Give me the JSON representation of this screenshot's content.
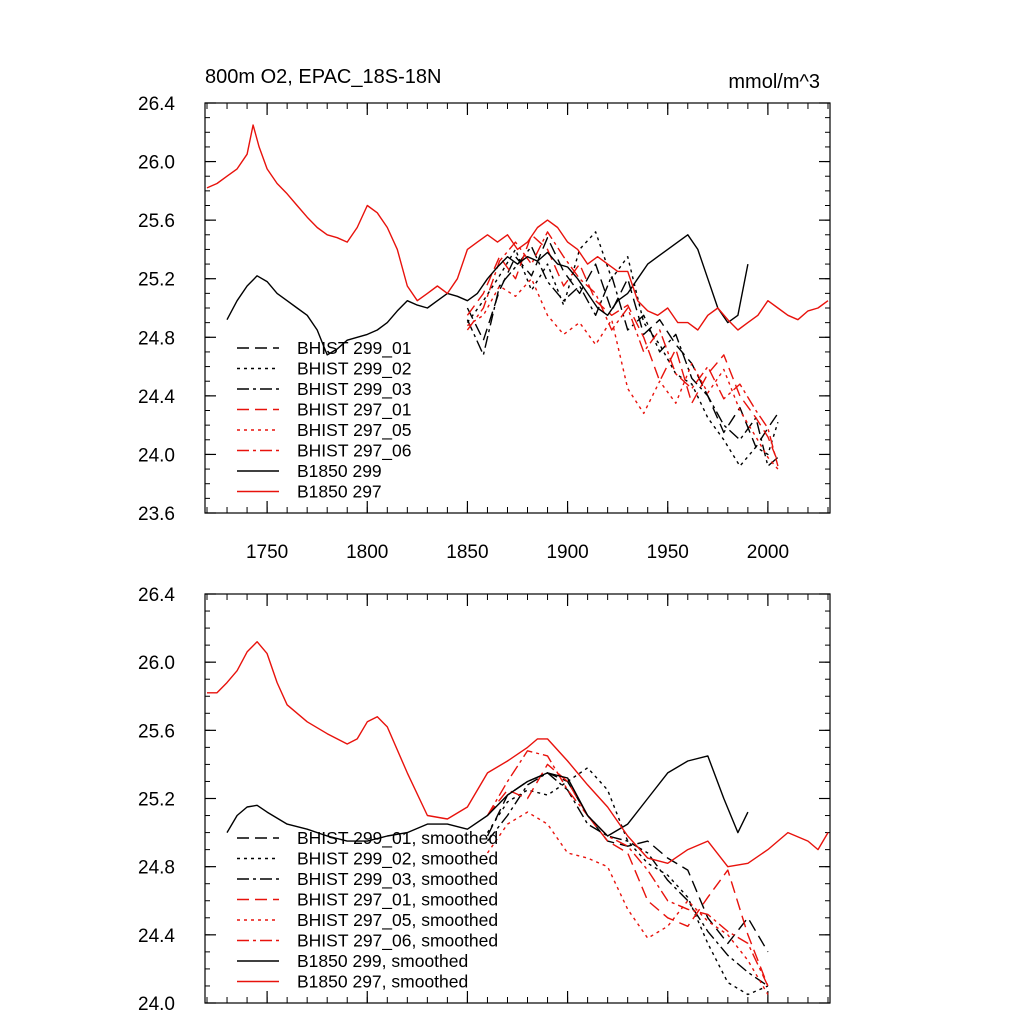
{
  "chart_data": [
    {
      "type": "line",
      "title": "800m O2, EPAC_18S-18N",
      "units_label": "mmol/m^3",
      "xlabel": "",
      "ylabel": "",
      "xlim": [
        1719,
        2031
      ],
      "ylim": [
        23.6,
        26.4
      ],
      "x_ticks": [
        1750,
        1800,
        1850,
        1900,
        1950,
        2000
      ],
      "y_ticks": [
        23.6,
        24.0,
        24.4,
        24.8,
        25.2,
        25.6,
        26.0,
        26.4
      ],
      "show_x_tick_labels": true,
      "legend_position": "bottom-left",
      "series": [
        {
          "name": "BHIST 299_01",
          "color": "#000000",
          "dash": "dash",
          "x": [
            1850,
            1858,
            1866,
            1874,
            1882,
            1890,
            1898,
            1906,
            1914,
            1922,
            1930,
            1938,
            1946,
            1954,
            1962,
            1970,
            1978,
            1986,
            1994,
            2000,
            2005
          ],
          "y": [
            25.0,
            24.78,
            25.12,
            25.35,
            25.22,
            25.48,
            25.25,
            25.1,
            25.3,
            24.98,
            25.2,
            24.82,
            24.92,
            24.75,
            24.62,
            24.4,
            24.15,
            24.32,
            24.05,
            24.18,
            24.28
          ]
        },
        {
          "name": "BHIST 299_02",
          "color": "#000000",
          "dash": "dot",
          "x": [
            1850,
            1858,
            1866,
            1874,
            1882,
            1890,
            1898,
            1906,
            1914,
            1922,
            1930,
            1938,
            1946,
            1954,
            1962,
            1970,
            1978,
            1986,
            1994,
            2000,
            2005
          ],
          "y": [
            24.9,
            25.05,
            25.22,
            25.4,
            25.12,
            25.3,
            25.02,
            25.4,
            25.52,
            25.2,
            25.35,
            24.9,
            24.75,
            24.55,
            24.48,
            24.25,
            24.1,
            23.92,
            24.05,
            24.0,
            24.22
          ]
        },
        {
          "name": "BHIST 299_03",
          "color": "#000000",
          "dash": "dashdot",
          "x": [
            1850,
            1858,
            1866,
            1874,
            1882,
            1890,
            1898,
            1906,
            1914,
            1922,
            1930,
            1938,
            1946,
            1954,
            1962,
            1970,
            1978,
            1986,
            1994,
            2000,
            2005
          ],
          "y": [
            24.92,
            24.68,
            25.15,
            25.28,
            25.42,
            25.18,
            25.05,
            25.15,
            24.95,
            25.22,
            24.85,
            24.95,
            24.7,
            24.82,
            24.52,
            24.4,
            24.2,
            24.1,
            24.25,
            23.92,
            23.98
          ]
        },
        {
          "name": "BHIST 297_01",
          "color": "#e8120c",
          "dash": "dash",
          "x": [
            1850,
            1858,
            1866,
            1874,
            1882,
            1890,
            1898,
            1906,
            1914,
            1922,
            1930,
            1938,
            1946,
            1954,
            1962,
            1970,
            1978,
            1986,
            1994,
            2000,
            2005
          ],
          "y": [
            24.95,
            25.1,
            25.35,
            25.2,
            25.5,
            25.4,
            25.15,
            25.3,
            25.05,
            24.95,
            25.02,
            24.8,
            24.5,
            24.72,
            24.35,
            24.55,
            24.68,
            24.4,
            24.25,
            24.12,
            23.95
          ]
        },
        {
          "name": "BHIST 297_05",
          "color": "#e8120c",
          "dash": "dot",
          "x": [
            1850,
            1858,
            1866,
            1874,
            1882,
            1890,
            1898,
            1906,
            1914,
            1922,
            1930,
            1938,
            1946,
            1954,
            1962,
            1970,
            1978,
            1986,
            1994,
            2000,
            2005
          ],
          "y": [
            24.88,
            24.95,
            25.15,
            25.08,
            25.2,
            24.95,
            24.82,
            24.9,
            24.75,
            24.92,
            24.45,
            24.28,
            24.5,
            24.35,
            24.62,
            24.42,
            24.58,
            24.3,
            24.12,
            23.98,
            23.9
          ]
        },
        {
          "name": "BHIST 297_06",
          "color": "#e8120c",
          "dash": "dashdot",
          "x": [
            1850,
            1858,
            1866,
            1874,
            1882,
            1890,
            1898,
            1906,
            1914,
            1922,
            1930,
            1938,
            1946,
            1954,
            1962,
            1970,
            1978,
            1986,
            1994,
            2000,
            2005
          ],
          "y": [
            24.85,
            25.0,
            25.32,
            25.45,
            25.3,
            25.52,
            25.35,
            25.2,
            25.1,
            24.85,
            25.0,
            24.7,
            24.85,
            24.55,
            24.45,
            24.6,
            24.38,
            24.48,
            24.3,
            24.18,
            23.92
          ]
        },
        {
          "name": "B1850 299",
          "color": "#000000",
          "dash": "solid",
          "x": [
            1730,
            1735,
            1740,
            1745,
            1750,
            1755,
            1760,
            1765,
            1770,
            1775,
            1780,
            1785,
            1790,
            1795,
            1800,
            1805,
            1810,
            1815,
            1820,
            1825,
            1830,
            1835,
            1840,
            1845,
            1850,
            1855,
            1860,
            1865,
            1870,
            1875,
            1880,
            1885,
            1890,
            1895,
            1900,
            1905,
            1910,
            1915,
            1920,
            1925,
            1930,
            1935,
            1940,
            1945,
            1950,
            1955,
            1960,
            1965,
            1970,
            1975,
            1980,
            1985,
            1990
          ],
          "y": [
            24.92,
            25.05,
            25.15,
            25.22,
            25.18,
            25.1,
            25.05,
            25.0,
            24.95,
            24.85,
            24.68,
            24.72,
            24.78,
            24.8,
            24.82,
            24.85,
            24.9,
            24.98,
            25.05,
            25.02,
            25.0,
            25.05,
            25.1,
            25.08,
            25.05,
            25.1,
            25.2,
            25.28,
            25.35,
            25.3,
            25.35,
            25.32,
            25.38,
            25.3,
            25.28,
            25.2,
            25.1,
            25.0,
            24.95,
            25.05,
            25.1,
            25.2,
            25.3,
            25.35,
            25.4,
            25.45,
            25.5,
            25.4,
            25.2,
            25.0,
            24.9,
            24.95,
            25.3
          ]
        },
        {
          "name": "B1850 297",
          "color": "#e8120c",
          "dash": "solid",
          "x": [
            1720,
            1725,
            1730,
            1735,
            1740,
            1743,
            1746,
            1750,
            1755,
            1760,
            1765,
            1770,
            1775,
            1780,
            1785,
            1790,
            1795,
            1800,
            1805,
            1810,
            1815,
            1820,
            1825,
            1830,
            1835,
            1840,
            1845,
            1850,
            1855,
            1860,
            1865,
            1870,
            1875,
            1880,
            1885,
            1890,
            1895,
            1900,
            1905,
            1910,
            1915,
            1920,
            1925,
            1930,
            1935,
            1940,
            1945,
            1950,
            1955,
            1960,
            1965,
            1970,
            1975,
            1980,
            1985,
            1990,
            1995,
            2000,
            2005,
            2010,
            2015,
            2020,
            2025,
            2030
          ],
          "y": [
            25.82,
            25.85,
            25.9,
            25.95,
            26.05,
            26.25,
            26.1,
            25.95,
            25.85,
            25.78,
            25.7,
            25.62,
            25.55,
            25.5,
            25.48,
            25.45,
            25.55,
            25.7,
            25.65,
            25.55,
            25.4,
            25.15,
            25.05,
            25.1,
            25.15,
            25.1,
            25.2,
            25.4,
            25.45,
            25.5,
            25.45,
            25.5,
            25.4,
            25.45,
            25.55,
            25.6,
            25.55,
            25.45,
            25.4,
            25.3,
            25.35,
            25.3,
            25.25,
            25.25,
            25.05,
            24.98,
            24.95,
            25.0,
            24.9,
            24.9,
            24.85,
            24.95,
            25.0,
            24.92,
            24.85,
            24.9,
            24.95,
            25.05,
            25.0,
            24.95,
            24.92,
            24.98,
            25.0,
            25.05
          ]
        }
      ]
    },
    {
      "type": "line",
      "title": "",
      "units_label": "",
      "xlabel": "",
      "ylabel": "",
      "xlim": [
        1719,
        2031
      ],
      "ylim": [
        24.0,
        26.4
      ],
      "x_ticks": [
        1750,
        1800,
        1850,
        1900,
        1950,
        2000
      ],
      "y_ticks": [
        24.0,
        24.4,
        24.8,
        25.2,
        25.6,
        26.0,
        26.4
      ],
      "show_x_tick_labels": false,
      "legend_position": "bottom-left",
      "series": [
        {
          "name": "BHIST 299_01, smoothed",
          "color": "#000000",
          "dash": "dash",
          "x": [
            1860,
            1870,
            1880,
            1890,
            1900,
            1910,
            1920,
            1930,
            1940,
            1950,
            1960,
            1970,
            1980,
            1990,
            2000
          ],
          "y": [
            24.98,
            25.22,
            25.3,
            25.35,
            25.3,
            25.1,
            24.95,
            24.92,
            24.95,
            24.85,
            24.78,
            24.5,
            24.35,
            24.5,
            24.3
          ]
        },
        {
          "name": "BHIST 299_02, smoothed",
          "color": "#000000",
          "dash": "dot",
          "x": [
            1860,
            1870,
            1880,
            1890,
            1900,
            1910,
            1920,
            1930,
            1940,
            1950,
            1960,
            1970,
            1980,
            1990,
            2000
          ],
          "y": [
            25.0,
            25.18,
            25.25,
            25.22,
            25.3,
            25.38,
            25.25,
            24.95,
            24.82,
            24.75,
            24.62,
            24.35,
            24.12,
            24.05,
            24.1
          ]
        },
        {
          "name": "BHIST 299_03, smoothed",
          "color": "#000000",
          "dash": "dashdot",
          "x": [
            1860,
            1870,
            1880,
            1890,
            1900,
            1910,
            1920,
            1930,
            1940,
            1950,
            1960,
            1970,
            1980,
            1990,
            2000
          ],
          "y": [
            24.95,
            25.1,
            25.28,
            25.35,
            25.25,
            25.05,
            24.98,
            24.95,
            24.88,
            24.72,
            24.6,
            24.42,
            24.28,
            24.18,
            24.1
          ]
        },
        {
          "name": "BHIST 297_01, smoothed",
          "color": "#e8120c",
          "dash": "dash",
          "x": [
            1860,
            1870,
            1880,
            1890,
            1900,
            1910,
            1920,
            1930,
            1940,
            1950,
            1960,
            1970,
            1980,
            1990,
            2000
          ],
          "y": [
            25.1,
            25.25,
            25.2,
            25.4,
            25.3,
            25.1,
            24.95,
            24.88,
            24.6,
            24.5,
            24.45,
            24.62,
            24.78,
            24.4,
            24.1
          ]
        },
        {
          "name": "BHIST 297_05, smoothed",
          "color": "#e8120c",
          "dash": "dot",
          "x": [
            1860,
            1870,
            1880,
            1890,
            1900,
            1910,
            1920,
            1930,
            1940,
            1950,
            1960,
            1970,
            1980,
            1990,
            2000
          ],
          "y": [
            24.88,
            25.05,
            25.12,
            25.05,
            24.88,
            24.85,
            24.8,
            24.55,
            24.38,
            24.45,
            24.6,
            24.48,
            24.4,
            24.25,
            24.05
          ]
        },
        {
          "name": "BHIST 297_06, smoothed",
          "color": "#e8120c",
          "dash": "dashdot",
          "x": [
            1860,
            1870,
            1880,
            1890,
            1900,
            1910,
            1920,
            1930,
            1940,
            1950,
            1960,
            1970,
            1980,
            1990,
            2000
          ],
          "y": [
            25.1,
            25.3,
            25.48,
            25.45,
            25.25,
            25.1,
            24.98,
            24.92,
            24.78,
            24.6,
            24.55,
            24.52,
            24.42,
            24.35,
            24.1
          ]
        },
        {
          "name": "B1850 299, smoothed",
          "color": "#000000",
          "dash": "solid",
          "x": [
            1730,
            1735,
            1740,
            1745,
            1750,
            1760,
            1770,
            1780,
            1790,
            1800,
            1810,
            1820,
            1830,
            1840,
            1850,
            1860,
            1870,
            1880,
            1890,
            1900,
            1910,
            1920,
            1930,
            1940,
            1950,
            1960,
            1970,
            1978,
            1985,
            1990
          ],
          "y": [
            25.0,
            25.1,
            25.15,
            25.16,
            25.12,
            25.05,
            25.02,
            24.98,
            24.95,
            24.95,
            24.98,
            25.0,
            25.05,
            25.05,
            25.02,
            25.1,
            25.22,
            25.3,
            25.35,
            25.32,
            25.1,
            24.98,
            25.05,
            25.2,
            25.35,
            25.42,
            25.45,
            25.2,
            25.0,
            25.12
          ]
        },
        {
          "name": "B1850 297, smoothed",
          "color": "#e8120c",
          "dash": "solid",
          "x": [
            1720,
            1725,
            1730,
            1735,
            1740,
            1745,
            1750,
            1755,
            1760,
            1770,
            1780,
            1790,
            1795,
            1800,
            1805,
            1810,
            1820,
            1830,
            1840,
            1850,
            1860,
            1870,
            1880,
            1885,
            1890,
            1900,
            1910,
            1920,
            1930,
            1940,
            1950,
            1960,
            1970,
            1980,
            1990,
            2000,
            2010,
            2020,
            2025,
            2030
          ],
          "y": [
            25.82,
            25.82,
            25.88,
            25.95,
            26.06,
            26.12,
            26.05,
            25.88,
            25.75,
            25.65,
            25.58,
            25.52,
            25.55,
            25.65,
            25.68,
            25.62,
            25.35,
            25.1,
            25.08,
            25.15,
            25.35,
            25.42,
            25.5,
            25.55,
            25.55,
            25.42,
            25.28,
            25.15,
            24.98,
            24.85,
            24.82,
            24.9,
            24.95,
            24.8,
            24.82,
            24.9,
            25.0,
            24.95,
            24.9,
            25.0
          ]
        }
      ]
    }
  ]
}
